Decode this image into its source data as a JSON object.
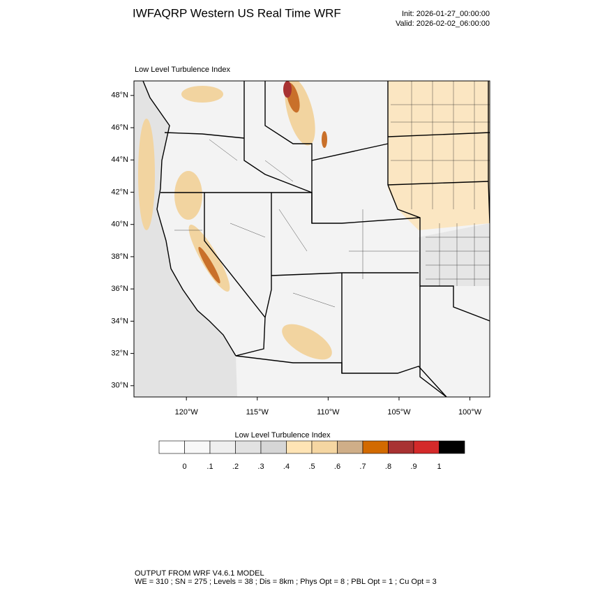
{
  "chart_data": {
    "type": "map",
    "title": "IWFAQRP Western US Real Time WRF",
    "init": "Init: 2026-01-27_00:00:00",
    "valid": "Valid: 2026-02-02_06:00:00",
    "subtitle": "Low Level Turbulence Index",
    "ylim": [
      29.3,
      48.9
    ],
    "xlim": [
      -123.7,
      -98.6
    ],
    "yticks": [
      {
        "value": 30,
        "label": "30°N"
      },
      {
        "value": 32,
        "label": "32°N"
      },
      {
        "value": 34,
        "label": "34°N"
      },
      {
        "value": 36,
        "label": "36°N"
      },
      {
        "value": 38,
        "label": "38°N"
      },
      {
        "value": 40,
        "label": "40°N"
      },
      {
        "value": 42,
        "label": "42°N"
      },
      {
        "value": 44,
        "label": "44°N"
      },
      {
        "value": 46,
        "label": "46°N"
      },
      {
        "value": 48,
        "label": "48°N"
      }
    ],
    "xticks": [
      {
        "value": -120,
        "label": "120°W"
      },
      {
        "value": -115,
        "label": "115°W"
      },
      {
        "value": -110,
        "label": "110°W"
      },
      {
        "value": -105,
        "label": "105°W"
      },
      {
        "value": -100,
        "label": "100°W"
      }
    ],
    "colorbar": {
      "title": "Low Level Turbulence Index",
      "levels": [
        0,
        {
          "value": 0.1,
          "label": ".1"
        },
        {
          "value": 0.2,
          "label": ".2"
        },
        {
          "value": 0.3,
          "label": ".3"
        },
        {
          "value": 0.4,
          "label": ".4"
        },
        {
          "value": 0.5,
          "label": ".5"
        },
        {
          "value": 0.6,
          "label": ".6"
        },
        {
          "value": 0.7,
          "label": ".7"
        },
        {
          "value": 0.8,
          "label": ".8"
        },
        {
          "value": 0.9,
          "label": ".9"
        },
        1
      ],
      "colors": [
        "#ffffff",
        "#f8f8f8",
        "#efefef",
        "#e2e2e2",
        "#d6d6d6",
        "#ffe4b5",
        "#f5d6a2",
        "#cfae88",
        "#d26a00",
        "#a83232",
        "#d42a2a",
        "#000000"
      ]
    },
    "footer": [
      "OUTPUT FROM WRF V4.6.1 MODEL",
      "WE = 310 ; SN = 275 ; Levels = 38 ; Dis = 8km ; Phys Opt = 8 ; PBL Opt = 1 ; Cu Opt = 3"
    ]
  }
}
